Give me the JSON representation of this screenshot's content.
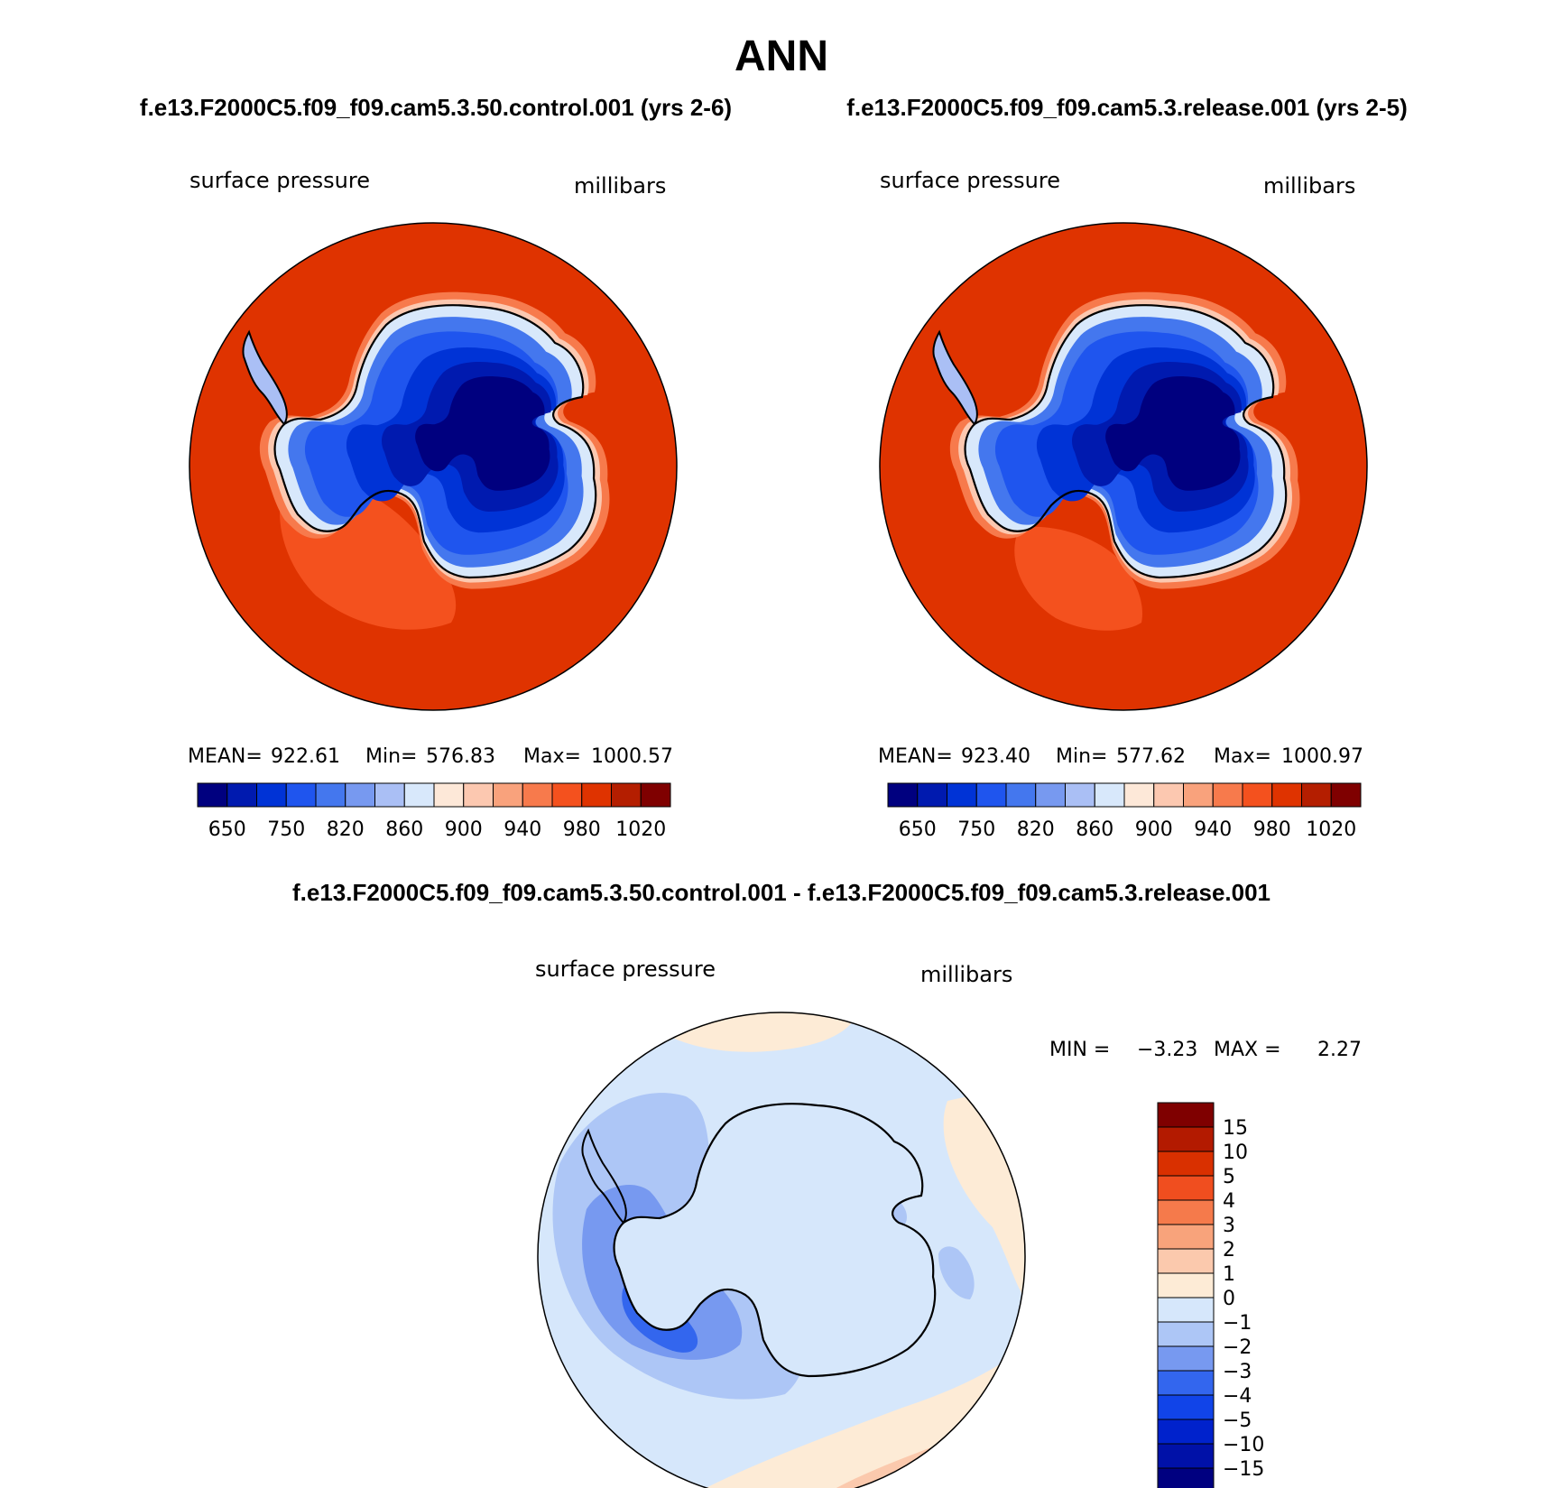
{
  "page_title": "ANN",
  "header_left": "f.e13.F2000C5.f09_f09.cam5.3.50.control.001 (yrs 2-6)",
  "header_right": "f.e13.F2000C5.f09_f09.cam5.3.release.001 (yrs 2-5)",
  "diff_title": "f.e13.F2000C5.f09_f09.cam5.3.50.control.001 - f.e13.F2000C5.f09_f09.cam5.3.release.001",
  "colors": {
    "pressure_scale": [
      "#00007f",
      "#001aaf",
      "#0033d6",
      "#1f55ee",
      "#4477ee",
      "#7799f0",
      "#aabff5",
      "#d8e8fb",
      "#fde8d8",
      "#fcc8b0",
      "#f9a27c",
      "#f77a4c",
      "#f4511e",
      "#df3300",
      "#b41e00",
      "#7f0000"
    ],
    "diff_scale": [
      "#000080",
      "#0011a8",
      "#0022cc",
      "#1144e8",
      "#3366ee",
      "#7799f0",
      "#adc6f6",
      "#d6e7fb",
      "#fdebd6",
      "#fbc9ad",
      "#f8a37b",
      "#f57a4b",
      "#f04e1f",
      "#d93000",
      "#b31a00",
      "#7f0000"
    ],
    "ocean": "#df3300",
    "ice_interior": "#00007f"
  },
  "chart_data": [
    {
      "type": "heatmap",
      "panel": "left",
      "title": "surface pressure",
      "units": "millibars",
      "stats": {
        "mean_label": "MEAN=",
        "mean": "922.61",
        "min_label": "Min=",
        "min": "576.83",
        "max_label": "Max=",
        "max": "1000.57"
      },
      "colorbar": {
        "orientation": "horizontal",
        "tick_labels": [
          "650",
          "750",
          "820",
          "860",
          "900",
          "940",
          "980",
          "1020"
        ]
      }
    },
    {
      "type": "heatmap",
      "panel": "right",
      "title": "surface pressure",
      "units": "millibars",
      "stats": {
        "mean_label": "MEAN=",
        "mean": "923.40",
        "min_label": "Min=",
        "min": "577.62",
        "max_label": "Max=",
        "max": "1000.97"
      },
      "colorbar": {
        "orientation": "horizontal",
        "tick_labels": [
          "650",
          "750",
          "820",
          "860",
          "900",
          "940",
          "980",
          "1020"
        ]
      }
    },
    {
      "type": "heatmap",
      "panel": "difference",
      "title": "surface pressure",
      "units": "millibars",
      "stats": {
        "min_label": "MIN =",
        "min": "−3.23",
        "max_label": "MAX =",
        "max": "2.27"
      },
      "colorbar": {
        "orientation": "vertical",
        "tick_labels": [
          "15",
          "10",
          "5",
          "4",
          "3",
          "2",
          "1",
          "0",
          "−1",
          "−2",
          "−3",
          "−4",
          "−5",
          "−10",
          "−15"
        ]
      }
    }
  ]
}
